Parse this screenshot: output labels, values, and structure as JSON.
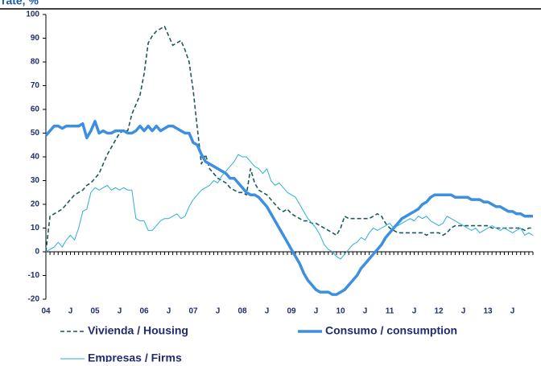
{
  "chart_data": {
    "type": "line",
    "title": "rate, %",
    "categories": [
      "04",
      null,
      null,
      null,
      null,
      null,
      "J",
      null,
      null,
      null,
      null,
      null,
      "05",
      null,
      null,
      null,
      null,
      null,
      "J",
      null,
      null,
      null,
      null,
      null,
      "06",
      null,
      null,
      null,
      null,
      null,
      "J",
      null,
      null,
      null,
      null,
      null,
      "07",
      null,
      null,
      null,
      null,
      null,
      "J",
      null,
      null,
      null,
      null,
      null,
      "08",
      null,
      null,
      null,
      null,
      null,
      "J",
      null,
      null,
      null,
      null,
      null,
      "09",
      null,
      null,
      null,
      null,
      null,
      "J",
      null,
      null,
      null,
      null,
      null,
      "10",
      null,
      null,
      null,
      null,
      null,
      "J",
      null,
      null,
      null,
      null,
      null,
      "11",
      null,
      null,
      null,
      null,
      null,
      "J",
      null,
      null,
      null,
      null,
      null,
      "12",
      null,
      null,
      null,
      null,
      null,
      "J",
      null,
      null,
      null,
      null,
      null,
      "13",
      null,
      null,
      null,
      null,
      null,
      "J",
      null,
      null,
      null,
      null,
      null
    ],
    "series": [
      {
        "name": "Vivienda / Housing",
        "color": "#1d5a5a",
        "style": "dashed",
        "width": 1.6,
        "values": [
          0,
          15,
          16,
          17,
          18,
          20,
          22,
          24,
          25,
          26,
          28,
          29,
          31,
          33,
          37,
          41,
          44,
          47,
          50,
          51,
          51,
          58,
          62,
          66,
          75,
          88,
          91,
          93,
          94,
          95,
          91,
          87,
          88,
          89,
          85,
          80,
          68,
          52,
          37,
          41,
          35,
          33,
          31,
          30,
          29,
          27,
          26,
          25,
          25,
          24,
          35,
          29,
          26,
          25,
          24,
          22,
          20,
          18,
          17,
          18,
          16,
          15,
          14,
          13,
          13,
          12,
          12,
          11,
          10,
          9,
          8,
          7,
          10,
          15,
          14,
          14,
          14,
          14,
          14,
          14,
          15,
          16,
          15,
          12,
          10,
          9,
          8,
          8,
          8,
          8,
          8,
          8,
          8,
          7,
          8,
          8,
          8,
          7,
          8,
          10,
          11,
          11,
          11,
          11,
          11,
          11,
          11,
          11,
          11,
          10,
          10,
          10,
          10,
          10,
          10,
          10,
          10,
          9,
          10,
          10
        ]
      },
      {
        "name": "Consumo / consumption",
        "color": "#3d8fe0",
        "style": "solid",
        "width": 3.5,
        "values": [
          49,
          51,
          53,
          53,
          52,
          53,
          53,
          53,
          53,
          54,
          48,
          51,
          55,
          50,
          51,
          50,
          50,
          51,
          51,
          51,
          50,
          50,
          51,
          53,
          51,
          53,
          51,
          53,
          51,
          52,
          53,
          53,
          52,
          51,
          50,
          50,
          46,
          45,
          41,
          38,
          37,
          36,
          35,
          34,
          33,
          31,
          31,
          29,
          27,
          25,
          24,
          24,
          23,
          21,
          19,
          16,
          13,
          10,
          7,
          4,
          1,
          -2,
          -5,
          -9,
          -12,
          -14,
          -16,
          -17,
          -17,
          -17,
          -18,
          -18,
          -17,
          -16,
          -14,
          -12,
          -10,
          -7,
          -5,
          -3,
          -1,
          1,
          3,
          6,
          8,
          10,
          12,
          14,
          15,
          16,
          17,
          18,
          20,
          21,
          23,
          24,
          24,
          24,
          24,
          24,
          23,
          23,
          23,
          23,
          22,
          22,
          22,
          21,
          21,
          20,
          19,
          19,
          18,
          17,
          17,
          16,
          16,
          15,
          15,
          15
        ]
      },
      {
        "name": "Empresas / Firms",
        "color": "#2aaee0",
        "style": "solid",
        "width": 1,
        "values": [
          0,
          1,
          2,
          4,
          2,
          5,
          7,
          5,
          10,
          17,
          18,
          25,
          27,
          26,
          27,
          28,
          26,
          27,
          26,
          27,
          26,
          26,
          14,
          13,
          13,
          9,
          9,
          11,
          13,
          14,
          14,
          15,
          16,
          14,
          15,
          19,
          22,
          24,
          26,
          27,
          28,
          30,
          29,
          32,
          34,
          36,
          38,
          41,
          40,
          40,
          38,
          36,
          35,
          33,
          35,
          30,
          28,
          29,
          27,
          25,
          24,
          23,
          20,
          17,
          14,
          12,
          10,
          7,
          3,
          1,
          0,
          -2,
          -3,
          -1,
          1,
          3,
          4,
          6,
          5,
          8,
          10,
          9,
          10,
          11,
          12,
          10,
          11,
          12,
          13,
          14,
          13,
          15,
          14,
          15,
          13,
          12,
          11,
          12,
          15,
          14,
          13,
          12,
          11,
          10,
          9,
          10,
          8,
          9,
          10,
          11,
          10,
          9,
          10,
          9,
          8,
          9,
          10,
          7,
          8,
          7
        ]
      }
    ],
    "ylim": [
      -20,
      100
    ],
    "yticks": [
      -20,
      -10,
      0,
      10,
      20,
      30,
      40,
      50,
      60,
      70,
      80,
      90,
      100
    ]
  }
}
